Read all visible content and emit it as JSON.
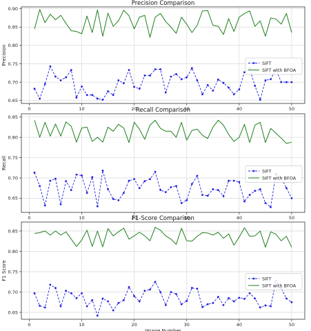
{
  "chart_data": [
    {
      "type": "line",
      "title": "Precision Comparison",
      "xlabel": "",
      "ylabel": "Precision",
      "xlim": [
        -1.5,
        52.5
      ],
      "ylim": [
        0.642,
        0.905
      ],
      "xticks": [
        0,
        10,
        20,
        30,
        40,
        50
      ],
      "yticks": [
        0.65,
        0.7,
        0.75,
        0.8,
        0.85,
        0.9
      ],
      "ytick_labels": [
        "0.65",
        "0.70",
        "0.75",
        "0.80",
        "0.85",
        "0.90"
      ],
      "grid": true,
      "legend_position": "center-right",
      "x": [
        1,
        2,
        3,
        4,
        5,
        6,
        7,
        8,
        9,
        10,
        11,
        12,
        13,
        14,
        15,
        16,
        17,
        18,
        19,
        20,
        21,
        22,
        23,
        24,
        25,
        26,
        27,
        28,
        29,
        30,
        31,
        32,
        33,
        34,
        35,
        36,
        37,
        38,
        39,
        40,
        41,
        42,
        43,
        44,
        45,
        46,
        47,
        48,
        49,
        50
      ],
      "series": [
        {
          "name": "SIFT",
          "color": "#1f1fdd",
          "style": "dashed-marker",
          "values": [
            0.682,
            0.655,
            0.695,
            0.743,
            0.715,
            0.705,
            0.713,
            0.733,
            0.658,
            0.688,
            0.665,
            0.665,
            0.655,
            0.652,
            0.675,
            0.665,
            0.705,
            0.697,
            0.733,
            0.687,
            0.682,
            0.718,
            0.718,
            0.735,
            0.735,
            0.672,
            0.715,
            0.722,
            0.708,
            0.713,
            0.738,
            0.705,
            0.667,
            0.692,
            0.677,
            0.707,
            0.698,
            0.685,
            0.667,
            0.68,
            0.727,
            0.737,
            0.69,
            0.652,
            0.705,
            0.708,
            0.735,
            0.7,
            0.7,
            0.7
          ]
        },
        {
          "name": "SIFT with BFOA",
          "color": "#1e7f1e",
          "style": "solid",
          "values": [
            0.845,
            0.898,
            0.862,
            0.885,
            0.87,
            0.882,
            0.86,
            0.84,
            0.838,
            0.832,
            0.88,
            0.835,
            0.897,
            0.825,
            0.888,
            0.852,
            0.867,
            0.896,
            0.881,
            0.845,
            0.877,
            0.882,
            0.822,
            0.877,
            0.887,
            0.865,
            0.85,
            0.833,
            0.877,
            0.858,
            0.835,
            0.855,
            0.894,
            0.895,
            0.855,
            0.852,
            0.83,
            0.873,
            0.838,
            0.877,
            0.887,
            0.894,
            0.852,
            0.867,
            0.825,
            0.875,
            0.872,
            0.858,
            0.887,
            0.835
          ]
        }
      ]
    },
    {
      "type": "line",
      "title": "Recall Comparison",
      "xlabel": "",
      "ylabel": "Recall",
      "xlim": [
        -1.5,
        52.5
      ],
      "ylim": [
        0.615,
        0.858
      ],
      "xticks": [
        0,
        10,
        20,
        30,
        40,
        50
      ],
      "yticks": [
        0.65,
        0.7,
        0.75,
        0.8,
        0.85
      ],
      "ytick_labels": [
        "0.65",
        "0.70",
        "0.75",
        "0.80",
        "0.85"
      ],
      "grid": true,
      "legend_position": "center-right",
      "x": [
        1,
        2,
        3,
        4,
        5,
        6,
        7,
        8,
        9,
        10,
        11,
        12,
        13,
        14,
        15,
        16,
        17,
        18,
        19,
        20,
        21,
        22,
        23,
        24,
        25,
        26,
        27,
        28,
        29,
        30,
        31,
        32,
        33,
        34,
        35,
        36,
        37,
        38,
        39,
        40,
        41,
        42,
        43,
        44,
        45,
        46,
        47,
        48,
        49,
        50
      ],
      "series": [
        {
          "name": "SIFT",
          "color": "#1f1fdd",
          "style": "dashed-marker",
          "values": [
            0.713,
            0.68,
            0.632,
            0.693,
            0.698,
            0.635,
            0.692,
            0.67,
            0.708,
            0.706,
            0.663,
            0.702,
            0.63,
            0.718,
            0.672,
            0.648,
            0.645,
            0.663,
            0.693,
            0.697,
            0.675,
            0.692,
            0.697,
            0.715,
            0.67,
            0.665,
            0.677,
            0.68,
            0.638,
            0.645,
            0.685,
            0.705,
            0.658,
            0.656,
            0.672,
            0.67,
            0.655,
            0.693,
            0.693,
            0.69,
            0.642,
            0.658,
            0.668,
            0.672,
            0.638,
            0.628,
            0.71,
            0.7,
            0.675,
            0.65
          ]
        },
        {
          "name": "SIFT with BFOA",
          "color": "#1e7f1e",
          "style": "solid",
          "values": [
            0.842,
            0.8,
            0.837,
            0.803,
            0.833,
            0.803,
            0.838,
            0.827,
            0.788,
            0.823,
            0.825,
            0.79,
            0.8,
            0.788,
            0.825,
            0.815,
            0.832,
            0.823,
            0.787,
            0.837,
            0.82,
            0.795,
            0.83,
            0.842,
            0.822,
            0.815,
            0.815,
            0.8,
            0.837,
            0.793,
            0.817,
            0.82,
            0.805,
            0.797,
            0.825,
            0.842,
            0.83,
            0.807,
            0.79,
            0.8,
            0.832,
            0.787,
            0.83,
            0.837,
            0.787,
            0.822,
            0.81,
            0.798,
            0.785,
            0.788
          ]
        }
      ]
    },
    {
      "type": "line",
      "title": "F1-Score Comparison",
      "xlabel": "Image Number",
      "ylabel": "F1 Score",
      "xlim": [
        -1.5,
        52.5
      ],
      "ylim": [
        0.633,
        0.872
      ],
      "xticks": [
        0,
        10,
        20,
        30,
        40,
        50
      ],
      "yticks": [
        0.65,
        0.7,
        0.75,
        0.8,
        0.85
      ],
      "ytick_labels": [
        "0.65",
        "0.70",
        "0.75",
        "0.80",
        "0.85"
      ],
      "grid": true,
      "legend_position": "center-right",
      "x": [
        1,
        2,
        3,
        4,
        5,
        6,
        7,
        8,
        9,
        10,
        11,
        12,
        13,
        14,
        15,
        16,
        17,
        18,
        19,
        20,
        21,
        22,
        23,
        24,
        25,
        26,
        27,
        28,
        29,
        30,
        31,
        32,
        33,
        34,
        35,
        36,
        37,
        38,
        39,
        40,
        41,
        42,
        43,
        44,
        45,
        46,
        47,
        48,
        49,
        50
      ],
      "series": [
        {
          "name": "SIFT",
          "color": "#1f1fdd",
          "style": "dashed-marker",
          "values": [
            0.697,
            0.666,
            0.662,
            0.718,
            0.71,
            0.665,
            0.703,
            0.697,
            0.685,
            0.697,
            0.665,
            0.68,
            0.642,
            0.684,
            0.677,
            0.655,
            0.673,
            0.68,
            0.712,
            0.69,
            0.677,
            0.703,
            0.706,
            0.725,
            0.7,
            0.668,
            0.7,
            0.695,
            0.67,
            0.678,
            0.71,
            0.708,
            0.663,
            0.67,
            0.673,
            0.688,
            0.668,
            0.685,
            0.677,
            0.686,
            0.683,
            0.697,
            0.684,
            0.662,
            0.667,
            0.665,
            0.727,
            0.71,
            0.684,
            0.675
          ]
        },
        {
          "name": "SIFT with BFOA",
          "color": "#1e7f1e",
          "style": "solid",
          "values": [
            0.844,
            0.846,
            0.85,
            0.84,
            0.85,
            0.84,
            0.848,
            0.83,
            0.812,
            0.828,
            0.852,
            0.812,
            0.85,
            0.811,
            0.856,
            0.838,
            0.848,
            0.857,
            0.83,
            0.838,
            0.847,
            0.838,
            0.826,
            0.859,
            0.852,
            0.838,
            0.83,
            0.817,
            0.857,
            0.826,
            0.825,
            0.837,
            0.846,
            0.845,
            0.84,
            0.847,
            0.832,
            0.843,
            0.815,
            0.835,
            0.858,
            0.837,
            0.838,
            0.85,
            0.81,
            0.848,
            0.842,
            0.826,
            0.837,
            0.81
          ]
        }
      ]
    }
  ]
}
